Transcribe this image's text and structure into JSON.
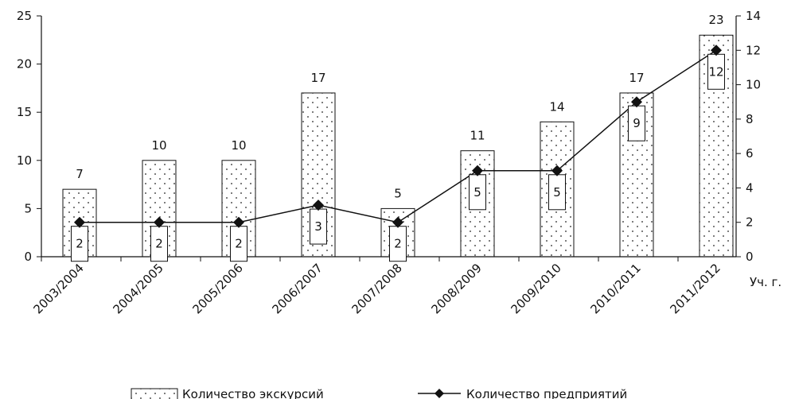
{
  "chart_data": {
    "type": "bar",
    "categories": [
      "2003/2004",
      "2004/2005",
      "2005/2006",
      "2006/2007",
      "2007/2008",
      "2008/2009",
      "2009/2010",
      "2010/2011",
      "2011/2012"
    ],
    "series": [
      {
        "name": "Количество экскурсий",
        "type": "bar",
        "axis": "left",
        "values": [
          7,
          10,
          10,
          17,
          5,
          11,
          14,
          17,
          23
        ]
      },
      {
        "name": "Количество предприятий",
        "type": "line",
        "axis": "right",
        "values": [
          2,
          2,
          2,
          3,
          2,
          5,
          5,
          9,
          12
        ]
      }
    ],
    "xlabel": "Уч. г.",
    "y_left": {
      "min": 0,
      "max": 25,
      "ticks": [
        0,
        5,
        10,
        15,
        20,
        25
      ]
    },
    "y_right": {
      "min": 0,
      "max": 14,
      "ticks": [
        0,
        2,
        4,
        6,
        8,
        10,
        12,
        14
      ]
    },
    "grid": false,
    "legend_position": "bottom",
    "bar_pattern": "dotted",
    "line_marker": "diamond"
  }
}
